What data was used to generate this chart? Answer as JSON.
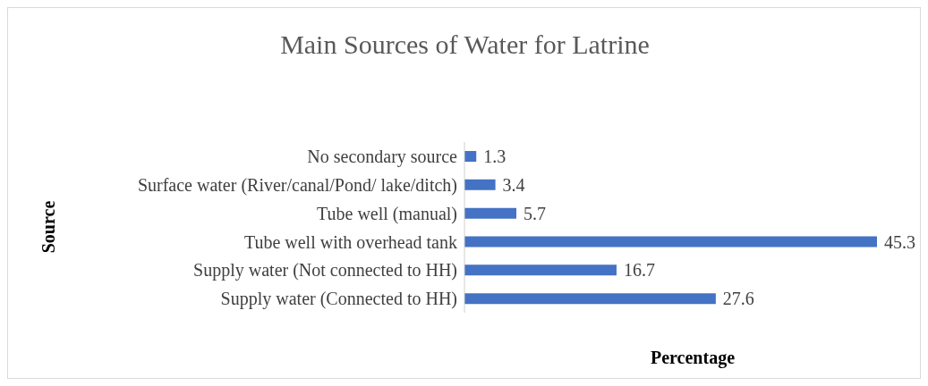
{
  "chart_data": {
    "type": "bar",
    "orientation": "horizontal",
    "title": "Main Sources of Water for Latrine",
    "xlabel": "Percentage",
    "ylabel": "Source",
    "categories": [
      "No secondary source",
      "Surface water (River/canal/Pond/ lake/ditch)",
      "Tube well (manual)",
      "Tube well with overhead tank",
      "Supply water (Not connected to HH)",
      "Supply water (Connected to HH)"
    ],
    "values": [
      1.3,
      3.4,
      5.7,
      45.3,
      16.7,
      27.6
    ],
    "color": "#4472c4",
    "tick_labels": "y",
    "data_labels": true
  }
}
